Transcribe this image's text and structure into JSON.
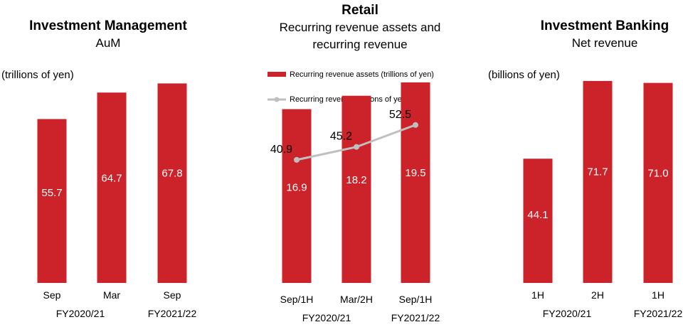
{
  "colors": {
    "bar": "#cc2229",
    "line": "#bfbfbf",
    "bar_label": "#ffffff",
    "text": "#000000"
  },
  "chart_data": [
    {
      "type": "bar",
      "title": "Investment Management",
      "subtitle": "AuM",
      "unit_label": "(trillions of yen)",
      "categories": [
        "Sep",
        "Mar",
        "Sep"
      ],
      "groups": [
        "FY2020/21",
        "FY2021/22"
      ],
      "values": [
        55.7,
        64.7,
        67.8
      ],
      "ylim": [
        0,
        72
      ]
    },
    {
      "type": "bar",
      "title": "Retail",
      "subtitle": "Recurring revenue assets and recurring revenue",
      "subtitle_lines": [
        "Recurring revenue assets and",
        "recurring revenue"
      ],
      "categories": [
        "Sep/1H",
        "Mar/2H",
        "Sep/1H"
      ],
      "groups": [
        "FY2020/21",
        "FY2021/22"
      ],
      "series": [
        {
          "name": "Recurring revenue assets (trillions of yen)",
          "type": "bar",
          "values": [
            16.9,
            18.2,
            19.5
          ]
        },
        {
          "name": "Recurring revenue (billions of yen)",
          "type": "line",
          "values": [
            40.9,
            45.2,
            52.5
          ]
        }
      ],
      "bar_ylim": [
        0,
        20.6
      ],
      "line_ylim": [
        0,
        70.4
      ]
    },
    {
      "type": "bar",
      "title": "Investment Banking",
      "subtitle": "Net revenue",
      "unit_label": "(billions of yen)",
      "categories": [
        "1H",
        "2H",
        "1H"
      ],
      "groups": [
        "FY2020/21",
        "FY2021/22"
      ],
      "values": [
        44.1,
        71.7,
        71.0
      ],
      "ylim": [
        0,
        75.2
      ]
    }
  ]
}
